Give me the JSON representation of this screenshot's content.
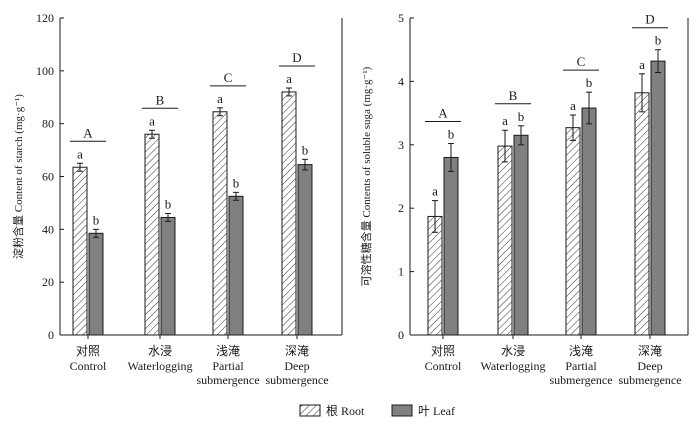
{
  "chart_data": [
    {
      "type": "bar",
      "ylabel": "淀粉含量 Content of starch (mg·g⁻¹)",
      "ylim": [
        0,
        120
      ],
      "yticks": [
        0,
        20,
        40,
        60,
        80,
        100,
        120
      ],
      "categories": [
        {
          "cn": "对照",
          "en": [
            "Control"
          ]
        },
        {
          "cn": "水浸",
          "en": [
            "Waterlogging"
          ]
        },
        {
          "cn": "浅淹",
          "en": [
            "Partial",
            "submergence"
          ]
        },
        {
          "cn": "深淹",
          "en": [
            "Deep",
            "submergence"
          ]
        }
      ],
      "series": [
        {
          "name": "根 Root",
          "values": [
            63.5,
            76,
            84.5,
            92
          ],
          "errors": [
            1.5,
            1.5,
            1.5,
            1.5
          ],
          "letters": [
            "a",
            "a",
            "a",
            "a"
          ]
        },
        {
          "name": "叶 Leaf",
          "values": [
            38.5,
            44.5,
            52.5,
            64.5
          ],
          "errors": [
            1.5,
            1.5,
            1.5,
            2
          ],
          "letters": [
            "b",
            "b",
            "b",
            "b"
          ]
        }
      ],
      "group_letters": [
        "A",
        "B",
        "C",
        "D"
      ]
    },
    {
      "type": "bar",
      "ylabel": "可溶性糖含量 Contents of soluble suga (mg·g⁻¹)",
      "ylim": [
        0,
        5
      ],
      "yticks": [
        0,
        1,
        2,
        3,
        4,
        5
      ],
      "categories": [
        {
          "cn": "对照",
          "en": [
            "Control"
          ]
        },
        {
          "cn": "水浸",
          "en": [
            "Waterlogging"
          ]
        },
        {
          "cn": "浅淹",
          "en": [
            "Partial",
            "submergence"
          ]
        },
        {
          "cn": "深淹",
          "en": [
            "Deep",
            "submergence"
          ]
        }
      ],
      "series": [
        {
          "name": "根 Root",
          "values": [
            1.87,
            2.98,
            3.27,
            3.82
          ],
          "errors": [
            0.25,
            0.25,
            0.2,
            0.3
          ],
          "letters": [
            "a",
            "a",
            "a",
            "a"
          ]
        },
        {
          "name": "叶 Leaf",
          "values": [
            2.8,
            3.15,
            3.58,
            4.32
          ],
          "errors": [
            0.22,
            0.15,
            0.25,
            0.18
          ],
          "letters": [
            "b",
            "b",
            "b",
            "b"
          ]
        }
      ],
      "group_letters": [
        "A",
        "B",
        "C",
        "D"
      ]
    }
  ],
  "legend": {
    "root_label": "根 Root",
    "leaf_label": "叶 Leaf",
    "leaf_color": "#808080"
  }
}
